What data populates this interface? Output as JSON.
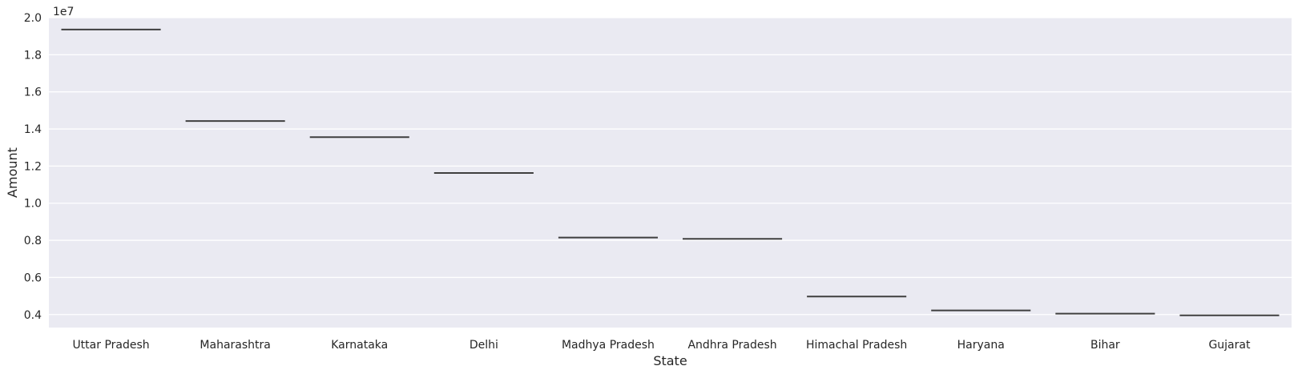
{
  "chart_data": {
    "type": "box",
    "xlabel": "State",
    "ylabel": "Amount",
    "y_scale_label": "1e7",
    "ylim": [
      0.33,
      2.0
    ],
    "yticks": [
      0.4,
      0.6,
      0.8,
      1.0,
      1.2,
      1.4,
      1.6,
      1.8,
      2.0
    ],
    "ytick_labels": [
      "0.4",
      "0.6",
      "0.8",
      "1.0",
      "1.2",
      "1.4",
      "1.6",
      "1.8",
      "2.0"
    ],
    "categories": [
      "Uttar Pradesh",
      "Maharashtra",
      "Karnataka",
      "Delhi",
      "Madhya Pradesh",
      "Andhra Pradesh",
      "Himachal Pradesh",
      "Haryana",
      "Bihar",
      "Gujarat"
    ],
    "values": [
      1.936,
      1.443,
      1.356,
      1.163,
      0.815,
      0.808,
      0.497,
      0.422,
      0.405,
      0.396
    ],
    "grid": true,
    "background_color": "#eaeaf2",
    "grid_color": "#ffffff",
    "line_color": "#3f3f3f"
  }
}
